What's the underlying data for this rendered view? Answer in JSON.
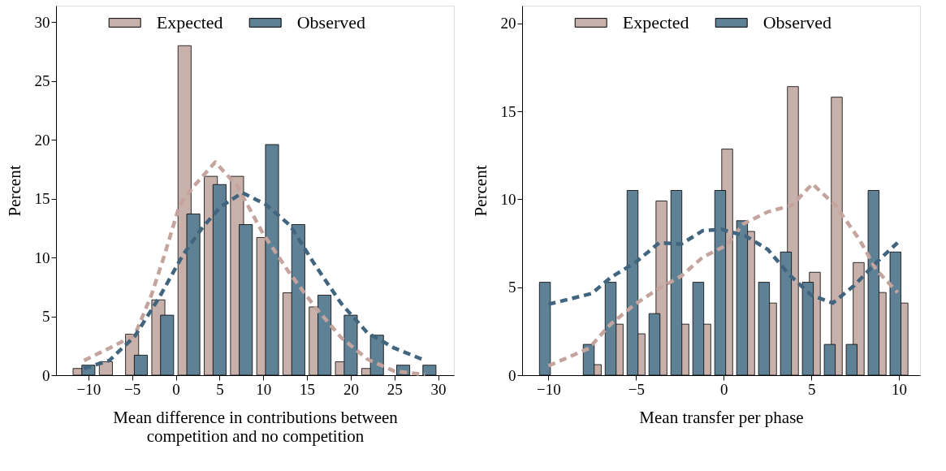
{
  "chart_data": [
    {
      "type": "bar",
      "xlabel": "Mean difference in contributions between\ncompetition and no competition",
      "ylabel": "Percent",
      "xlim": [
        -13.7,
        31.8
      ],
      "ylim": [
        0,
        31.4
      ],
      "xticks": [
        -10,
        -5,
        0,
        5,
        10,
        15,
        20,
        25,
        30
      ],
      "yticks": [
        0,
        5,
        10,
        15,
        20,
        25,
        30
      ],
      "legend": "top",
      "grid": false,
      "series": [
        {
          "name": "Expected",
          "color": "#c9b1ab",
          "x": [
            -11,
            -8,
            -5,
            -2,
            1,
            4,
            7,
            10,
            13,
            16,
            19,
            22
          ],
          "values": [
            0.57,
            1.14,
            3.48,
            6.4,
            28.0,
            16.9,
            16.9,
            11.7,
            7.0,
            5.8,
            1.14,
            0.57
          ]
        },
        {
          "name": "Observed",
          "color": "#5f8196",
          "x": [
            -10,
            -4,
            -1,
            2,
            5,
            8,
            11,
            14,
            17,
            20,
            23,
            26,
            29
          ],
          "values": [
            0.85,
            1.7,
            5.1,
            13.7,
            16.2,
            12.8,
            19.6,
            12.8,
            6.8,
            5.1,
            3.4,
            0.85,
            0.85
          ]
        },
        {
          "type": "line",
          "color": "#c4a49d",
          "line_style": "dashed",
          "x": [
            -10.5,
            -7.6,
            -4.7,
            -2.8,
            -1.3,
            0.4,
            2.1,
            4.5,
            7,
            10,
            12.8,
            15.8,
            18.9,
            21.9,
            25,
            28.5
          ],
          "values": [
            1.25,
            2.3,
            3.4,
            6.8,
            10.2,
            14.4,
            16.1,
            18.1,
            16.1,
            12,
            8.9,
            5.9,
            3.2,
            1.36,
            0.34,
            0.05
          ]
        },
        {
          "type": "line",
          "color": "#41657e",
          "line_style": "dashed",
          "x": [
            -10.5,
            -7.6,
            -4.7,
            -1.9,
            0.8,
            3,
            5.1,
            7.6,
            10.3,
            13.1,
            15.8,
            18.9,
            21.9,
            25,
            28.5
          ],
          "values": [
            0.57,
            1.25,
            3.3,
            6.6,
            10.2,
            12.5,
            14.3,
            15.5,
            14.5,
            12.7,
            9.5,
            6.1,
            3.6,
            2.3,
            1.25
          ]
        }
      ]
    },
    {
      "type": "bar",
      "xlabel": "Mean transfer per phase",
      "ylabel": "Percent",
      "xlim": [
        -11.5,
        11.2
      ],
      "ylim": [
        0,
        21
      ],
      "xticks": [
        -10,
        -5,
        0,
        5,
        10
      ],
      "yticks": [
        0,
        5,
        10,
        15,
        20
      ],
      "legend": "top",
      "grid": false,
      "series": [
        {
          "name": "Expected",
          "color": "#c9b1ab",
          "x": [
            -7.3,
            -6.05,
            -4.8,
            -3.55,
            -2.3,
            -1.05,
            0.2,
            1.45,
            2.7,
            3.95,
            5.2,
            6.45,
            7.7,
            8.95,
            10.2
          ],
          "values": [
            0.6,
            2.9,
            2.35,
            9.9,
            2.9,
            2.9,
            12.85,
            8.17,
            4.1,
            16.4,
            5.85,
            15.8,
            6.4,
            4.7,
            4.1
          ]
        },
        {
          "name": "Observed",
          "color": "#5f8196",
          "x": [
            -10.2,
            -7.7,
            -6.45,
            -5.2,
            -3.95,
            -2.7,
            -1.45,
            -0.2,
            1.05,
            2.3,
            3.55,
            4.8,
            6.05,
            7.3,
            8.55,
            9.8
          ],
          "values": [
            5.28,
            1.75,
            5.28,
            10.5,
            3.5,
            10.5,
            5.28,
            10.5,
            8.78,
            5.28,
            7.0,
            5.28,
            1.75,
            1.75,
            10.5,
            7.0
          ]
        },
        {
          "type": "line",
          "color": "#c4a49d",
          "line_style": "dashed",
          "x": [
            -10,
            -7.7,
            -6.45,
            -5.06,
            -3.67,
            -2.43,
            -1.2,
            0.19,
            1.12,
            2.51,
            3.9,
            5.06,
            6.37,
            7.76,
            8.7,
            9.92
          ],
          "values": [
            0.53,
            1.52,
            2.9,
            4.03,
            4.94,
            5.63,
            6.7,
            7.4,
            8.6,
            9.28,
            9.66,
            10.87,
            9.66,
            7.68,
            6.0,
            4.7
          ]
        },
        {
          "type": "line",
          "color": "#41657e",
          "line_style": "dashed",
          "x": [
            -10,
            -7.53,
            -6.45,
            -5.06,
            -3.67,
            -2.43,
            -1.2,
            -0.12,
            1.27,
            2.51,
            3.75,
            4.98,
            6.22,
            7.45,
            8.69,
            9.92
          ],
          "values": [
            4.03,
            4.64,
            5.55,
            6.39,
            7.53,
            7.45,
            8.21,
            8.29,
            7.9,
            7.15,
            5.7,
            4.56,
            4.1,
            5.1,
            6.39,
            7.53
          ]
        }
      ]
    }
  ]
}
